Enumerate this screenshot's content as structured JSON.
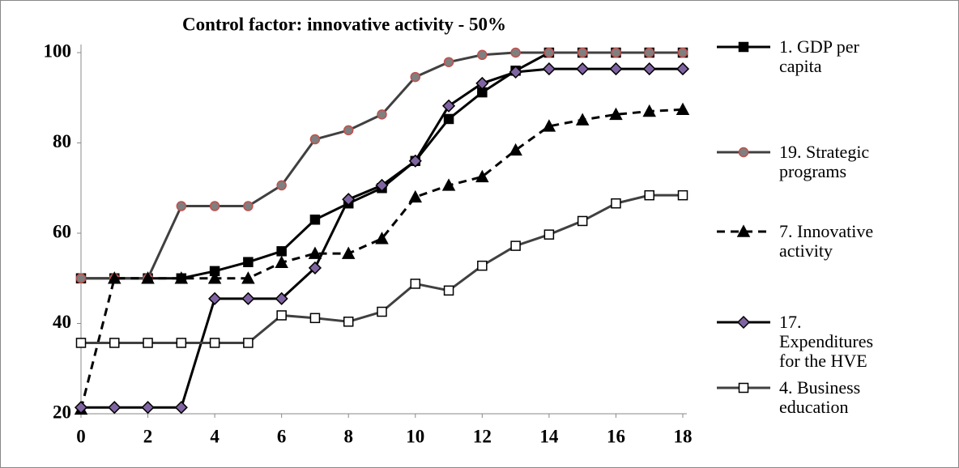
{
  "chart_data": {
    "type": "line",
    "title": "Control factor: innovative activity - 50%",
    "x": [
      0,
      1,
      2,
      3,
      4,
      5,
      6,
      7,
      8,
      9,
      10,
      11,
      12,
      13,
      14,
      15,
      16,
      17,
      18
    ],
    "xlim": [
      0,
      18
    ],
    "xticks": [
      0,
      2,
      4,
      6,
      8,
      10,
      12,
      14,
      16,
      18
    ],
    "ylim": [
      20,
      100
    ],
    "yticks": [
      20,
      40,
      60,
      80,
      100
    ],
    "grid": false,
    "legend": "right",
    "series": [
      {
        "name": "1. GDP per capita",
        "color": "#000000",
        "marker": "square",
        "marker_fill": "#000000",
        "marker_edge": "#000000",
        "dashed": false,
        "values": [
          50,
          50,
          50,
          50,
          51.6,
          53.6,
          56,
          63,
          66.6,
          70,
          76,
          85.3,
          91.2,
          96,
          100,
          100,
          100,
          100,
          100
        ]
      },
      {
        "name": "19. Strategic programs",
        "color": "#404040",
        "marker": "circle",
        "marker_fill": "#7f7f7f",
        "marker_edge": "#c0504d",
        "dashed": false,
        "values": [
          50,
          50,
          50,
          66,
          66,
          66,
          70.6,
          80.8,
          82.8,
          86.3,
          94.6,
          97.9,
          99.5,
          100,
          100,
          100,
          100,
          100,
          100
        ]
      },
      {
        "name": "7. Innovative activity",
        "color": "#000000",
        "marker": "triangle",
        "marker_fill": "#000000",
        "marker_edge": "#000000",
        "dashed": true,
        "values": [
          21,
          50,
          50,
          50,
          50,
          50,
          53.5,
          55.5,
          55.5,
          58.8,
          68,
          70.6,
          72.5,
          78.4,
          83.7,
          85.1,
          86.3,
          87,
          87.4
        ]
      },
      {
        "name": "17. Expenditures for the HVE",
        "color": "#000000",
        "marker": "diamond",
        "marker_fill": "#8064a2",
        "marker_edge": "#000000",
        "dashed": false,
        "values": [
          21.4,
          21.4,
          21.4,
          21.4,
          45.5,
          45.5,
          45.5,
          52.3,
          67.5,
          70.6,
          76,
          88.2,
          93.2,
          95.7,
          96.4,
          96.4,
          96.4,
          96.4,
          96.4
        ]
      },
      {
        "name": "4. Business education",
        "color": "#404040",
        "marker": "square",
        "marker_fill": "#ffffff",
        "marker_edge": "#000000",
        "dashed": false,
        "values": [
          35.7,
          35.7,
          35.7,
          35.7,
          35.7,
          35.7,
          41.8,
          41.2,
          40.4,
          42.6,
          48.8,
          47.3,
          52.8,
          57.2,
          59.7,
          62.7,
          66.6,
          68.4,
          68.4
        ]
      }
    ]
  }
}
